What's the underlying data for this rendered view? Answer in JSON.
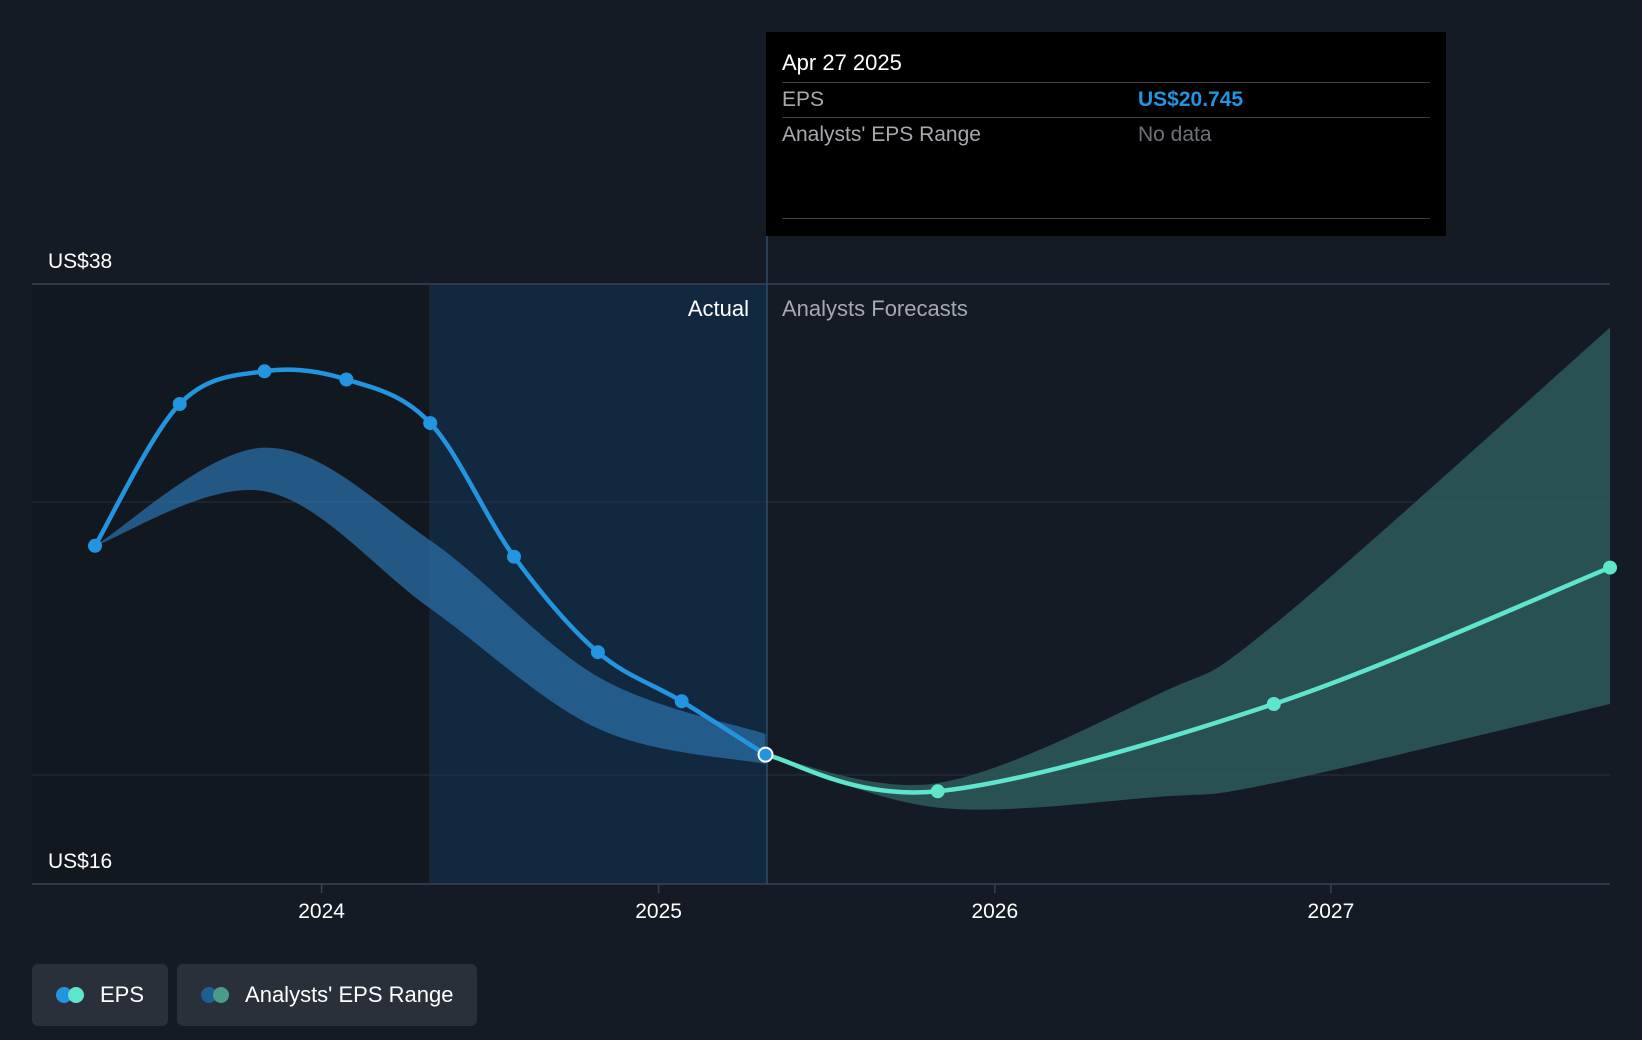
{
  "tooltip": {
    "date": "Apr 27 2025",
    "rows": [
      {
        "label": "EPS",
        "value": "US$20.745"
      },
      {
        "label": "Analysts' EPS Range",
        "value": "No data"
      }
    ]
  },
  "legend": [
    {
      "label": "EPS",
      "colors": [
        "#2394df",
        "#5ee5cc"
      ]
    },
    {
      "label": "Analysts' EPS Range",
      "colors": [
        "#1f5f8f",
        "#4b9a8c"
      ]
    }
  ],
  "colors": {
    "background": "#151b24",
    "actual_line": "#2394df",
    "forecast_line": "#5ee5cc",
    "actual_band": "#2a6ea6",
    "forecast_band": "#2f5f5c",
    "highlight_region": "#12283f"
  },
  "chart_data": {
    "type": "line",
    "ylabel": "",
    "xlabel": "",
    "y_tick_labels": [
      "US$38",
      "US$16"
    ],
    "ylim": [
      16,
      38
    ],
    "x_tick_labels": [
      "2024",
      "2025",
      "2026",
      "2027"
    ],
    "xlim": [
      "2023-04-30",
      "2027-10-31"
    ],
    "grid": true,
    "region_labels": {
      "actual": "Actual",
      "forecast": "Analysts Forecasts"
    },
    "divider_date": "2025-04-27",
    "series": [
      {
        "name": "EPS",
        "kind": "actual",
        "points": [
          {
            "x": "2023-04-30",
            "y": 28.4
          },
          {
            "x": "2023-07-31",
            "y": 33.6
          },
          {
            "x": "2023-10-31",
            "y": 34.8
          },
          {
            "x": "2024-01-28",
            "y": 34.5
          },
          {
            "x": "2024-04-28",
            "y": 32.9
          },
          {
            "x": "2024-07-28",
            "y": 28.0
          },
          {
            "x": "2024-10-27",
            "y": 24.5
          },
          {
            "x": "2025-01-26",
            "y": 22.7
          },
          {
            "x": "2025-04-27",
            "y": 20.745
          }
        ]
      },
      {
        "name": "EPS",
        "kind": "forecast",
        "points": [
          {
            "x": "2025-04-27",
            "y": 20.745
          },
          {
            "x": "2025-10-31",
            "y": 19.4
          },
          {
            "x": "2026-10-31",
            "y": 22.6
          },
          {
            "x": "2027-10-31",
            "y": 27.6
          }
        ]
      }
    ],
    "ranges": [
      {
        "kind": "actual",
        "upper": [
          {
            "x": "2023-04-30",
            "y": 28.4
          },
          {
            "x": "2023-10-31",
            "y": 32.0
          },
          {
            "x": "2024-04-28",
            "y": 28.6
          },
          {
            "x": "2024-10-27",
            "y": 23.6
          },
          {
            "x": "2025-04-27",
            "y": 21.5
          }
        ],
        "lower": [
          {
            "x": "2023-04-30",
            "y": 28.4
          },
          {
            "x": "2023-10-31",
            "y": 30.4
          },
          {
            "x": "2024-04-28",
            "y": 26.1
          },
          {
            "x": "2024-10-27",
            "y": 21.7
          },
          {
            "x": "2025-04-27",
            "y": 20.4
          }
        ]
      },
      {
        "kind": "forecast",
        "upper": [
          {
            "x": "2025-04-27",
            "y": 20.745
          },
          {
            "x": "2025-10-31",
            "y": 19.7
          },
          {
            "x": "2026-06-30",
            "y": 23.0
          },
          {
            "x": "2026-10-31",
            "y": 25.5
          },
          {
            "x": "2027-10-31",
            "y": 36.4
          }
        ],
        "lower": [
          {
            "x": "2025-04-27",
            "y": 20.745
          },
          {
            "x": "2025-10-31",
            "y": 18.8
          },
          {
            "x": "2026-06-30",
            "y": 19.2
          },
          {
            "x": "2026-10-31",
            "y": 19.7
          },
          {
            "x": "2027-10-31",
            "y": 22.6
          }
        ]
      }
    ]
  }
}
